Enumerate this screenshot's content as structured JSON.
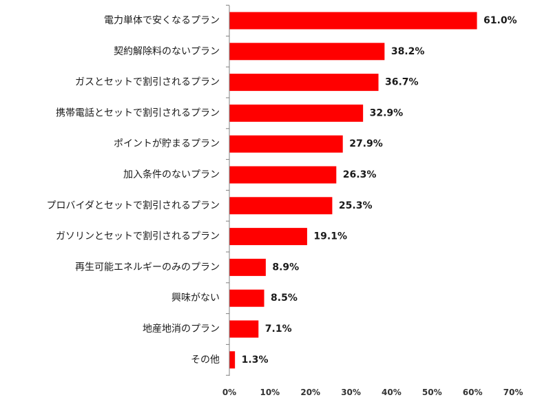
{
  "chart_data": {
    "type": "bar",
    "orientation": "horizontal",
    "categories": [
      "電力単体で安くなるプラン",
      "契約解除料のないプラン",
      "ガスとセットで割引されるプラン",
      "携帯電話とセットで割引されるプラン",
      "ポイントが貯まるプラン",
      "加入条件のないプラン",
      "プロバイダとセットで割引されるプラン",
      "ガソリンとセットで割引されるプラン",
      "再生可能エネルギーのみのプラン",
      "興味がない",
      "地産地消のプラン",
      "その他"
    ],
    "values": [
      61.0,
      38.2,
      36.7,
      32.9,
      27.9,
      26.3,
      25.3,
      19.1,
      8.9,
      8.5,
      7.1,
      1.3
    ],
    "value_labels": [
      "61.0%",
      "38.2%",
      "36.7%",
      "32.9%",
      "27.9%",
      "26.3%",
      "25.3%",
      "19.1%",
      "8.9%",
      "8.5%",
      "7.1%",
      "1.3%"
    ],
    "xlim": [
      0,
      70
    ],
    "xticks": [
      0,
      10,
      20,
      30,
      40,
      50,
      60,
      70
    ],
    "xtick_labels": [
      "0%",
      "10%",
      "20%",
      "30%",
      "40%",
      "50%",
      "60%",
      "70%"
    ],
    "grid": false,
    "legend": "none",
    "bar_color": "#ff0000",
    "axis_color": "#7f7f7f"
  }
}
